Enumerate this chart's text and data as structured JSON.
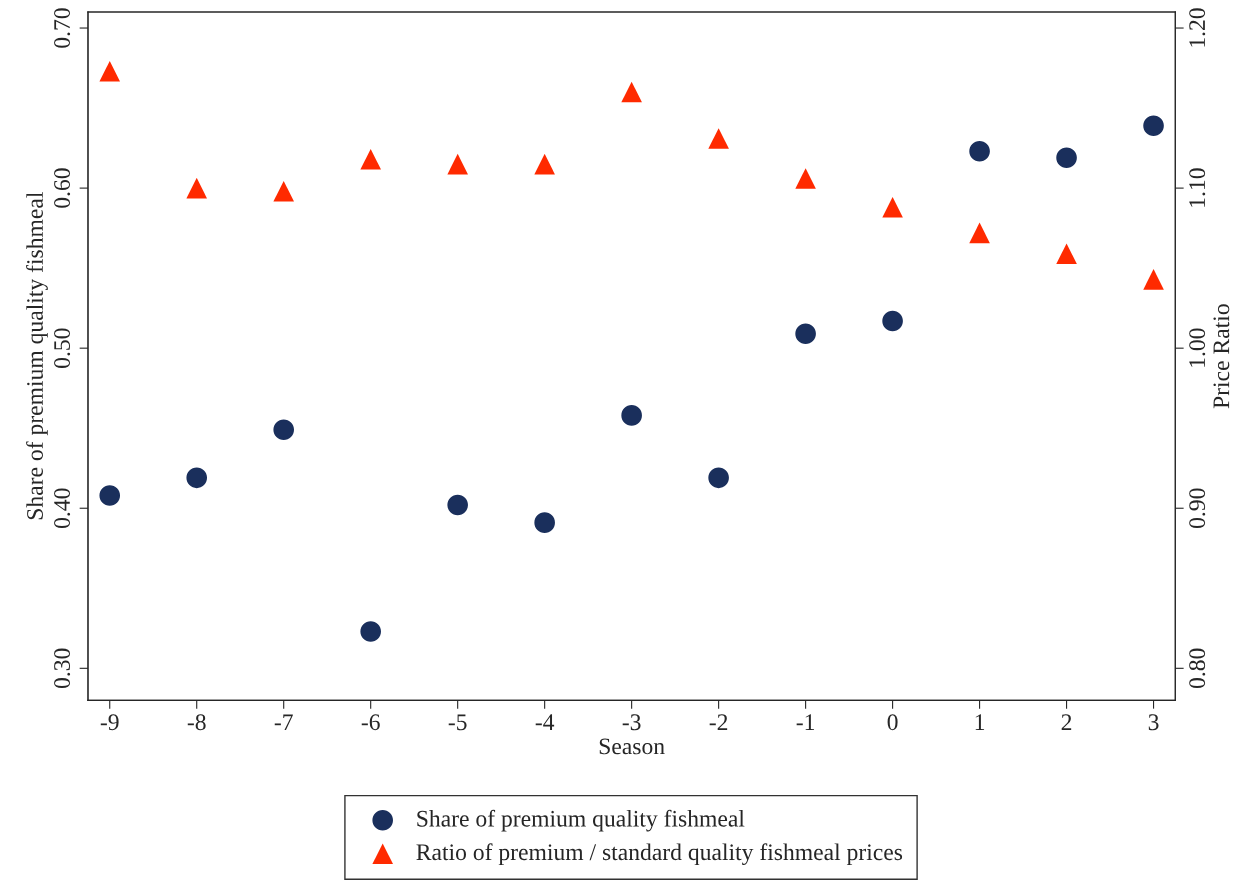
{
  "chart_data": {
    "type": "scatter",
    "xlabel": "Season",
    "ylabel": "Share of premium quality fishmeal",
    "y2label": "Price Ratio",
    "x": [
      -9,
      -8,
      -7,
      -6,
      -5,
      -4,
      -3,
      -2,
      -1,
      0,
      1,
      2,
      3
    ],
    "xlim": [
      -9.25,
      3.25
    ],
    "xticks": [
      -9,
      -8,
      -7,
      -6,
      -5,
      -4,
      -3,
      -2,
      -1,
      0,
      1,
      2,
      3
    ],
    "ylim": [
      0.28,
      0.71
    ],
    "yticks": [
      {
        "value": 0.3,
        "label": "0.30"
      },
      {
        "value": 0.4,
        "label": "0.40"
      },
      {
        "value": 0.5,
        "label": "0.50"
      },
      {
        "value": 0.6,
        "label": "0.60"
      },
      {
        "value": 0.7,
        "label": "0.70"
      }
    ],
    "y2lim": [
      0.78,
      1.21
    ],
    "y2ticks": [
      {
        "value": 0.8,
        "label": "0.80"
      },
      {
        "value": 0.9,
        "label": "0.90"
      },
      {
        "value": 1.0,
        "label": "1.00"
      },
      {
        "value": 1.1,
        "label": "1.10"
      },
      {
        "value": 1.2,
        "label": "1.20"
      }
    ],
    "grid": false,
    "legend": "bottom",
    "series": [
      {
        "name": "Share of premium quality fishmeal",
        "color": "#1a2f5c",
        "marker": "circle",
        "values": [
          0.408,
          0.419,
          0.449,
          0.323,
          0.402,
          0.391,
          0.458,
          0.419,
          0.509,
          0.517,
          0.623,
          0.619,
          0.639
        ]
      },
      {
        "name": "Ratio of premium / standard quality fishmeal prices",
        "color": "#ff2a00",
        "marker": "triangle",
        "axis": "y2",
        "values": [
          1.173,
          1.1,
          1.098,
          1.118,
          1.115,
          1.115,
          1.16,
          1.131,
          1.106,
          1.088,
          1.072,
          1.059,
          1.043
        ]
      }
    ]
  }
}
